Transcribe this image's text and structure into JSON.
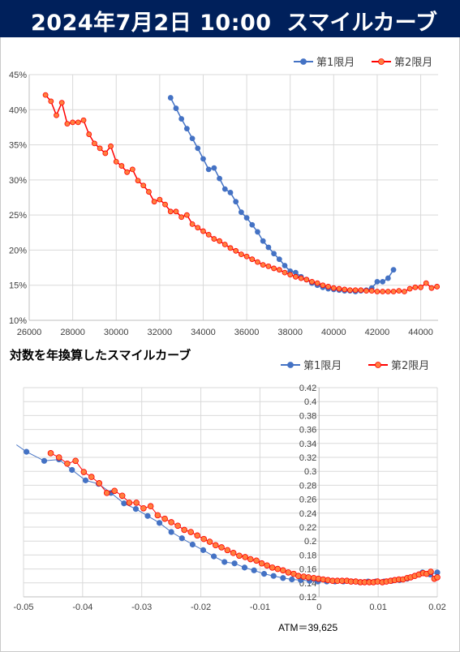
{
  "header": {
    "title": "2024年7月2日 10:00",
    "subtitle": "スマイルカーブ",
    "bg_color": "#00205b"
  },
  "colors": {
    "series1": "#4472c4",
    "series2": "#ff0000",
    "series2_fill": "#ff7f3f"
  },
  "chart_data": [
    {
      "type": "line",
      "title": "",
      "xlim": [
        26000,
        44800
      ],
      "ylim": [
        0.1,
        0.45
      ],
      "x_ticks": [
        26000,
        28000,
        30000,
        32000,
        34000,
        36000,
        38000,
        40000,
        42000,
        44000
      ],
      "y_ticks": [
        0.1,
        0.15,
        0.2,
        0.25,
        0.3,
        0.35,
        0.4,
        0.45
      ],
      "x_tick_labels": [
        "26000",
        "28000",
        "30000",
        "32000",
        "34000",
        "36000",
        "38000",
        "40000",
        "42000",
        "44000"
      ],
      "y_tick_labels": [
        "10%",
        "15%",
        "20%",
        "25%",
        "30%",
        "35%",
        "40%",
        "45%"
      ],
      "grid": true,
      "legend": "top-right",
      "series": [
        {
          "name": "第1限月",
          "x": [
            32500,
            32750,
            33000,
            33250,
            33500,
            33750,
            34000,
            34250,
            34500,
            34750,
            35000,
            35250,
            35500,
            35750,
            36000,
            36250,
            36500,
            36750,
            37000,
            37250,
            37500,
            37750,
            38000,
            38250,
            38500,
            38750,
            39000,
            39250,
            39500,
            39750,
            40000,
            40250,
            40500,
            40750,
            41000,
            41250,
            41500,
            41750,
            42000,
            42250,
            42500,
            42750
          ],
          "y": [
            0.417,
            0.402,
            0.387,
            0.373,
            0.359,
            0.345,
            0.33,
            0.315,
            0.317,
            0.302,
            0.287,
            0.282,
            0.269,
            0.254,
            0.246,
            0.236,
            0.226,
            0.213,
            0.204,
            0.195,
            0.187,
            0.178,
            0.17,
            0.168,
            0.162,
            0.158,
            0.153,
            0.15,
            0.147,
            0.145,
            0.144,
            0.143,
            0.142,
            0.142,
            0.141,
            0.142,
            0.143,
            0.146,
            0.155,
            0.155,
            0.16,
            0.172
          ]
        },
        {
          "name": "第2限月",
          "x": [
            26750,
            27000,
            27250,
            27500,
            27750,
            28000,
            28250,
            28500,
            28750,
            29000,
            29250,
            29500,
            29750,
            30000,
            30250,
            30500,
            30750,
            31000,
            31250,
            31500,
            31750,
            32000,
            32250,
            32500,
            32750,
            33000,
            33250,
            33500,
            33750,
            34000,
            34250,
            34500,
            34750,
            35000,
            35250,
            35500,
            35750,
            36000,
            36250,
            36500,
            36750,
            37000,
            37250,
            37500,
            37750,
            38000,
            38250,
            38500,
            38750,
            39000,
            39250,
            39500,
            39750,
            40000,
            40250,
            40500,
            40750,
            41000,
            41250,
            41500,
            41750,
            42000,
            42250,
            42500,
            42750,
            43000,
            43250,
            43500,
            43750,
            44000,
            44250,
            44500,
            44750
          ],
          "y": [
            0.421,
            0.412,
            0.392,
            0.41,
            0.38,
            0.382,
            0.382,
            0.385,
            0.365,
            0.352,
            0.345,
            0.338,
            0.348,
            0.326,
            0.32,
            0.311,
            0.315,
            0.299,
            0.292,
            0.283,
            0.269,
            0.272,
            0.265,
            0.255,
            0.255,
            0.247,
            0.25,
            0.237,
            0.232,
            0.227,
            0.222,
            0.216,
            0.213,
            0.208,
            0.203,
            0.199,
            0.194,
            0.191,
            0.187,
            0.183,
            0.179,
            0.177,
            0.174,
            0.172,
            0.168,
            0.165,
            0.162,
            0.16,
            0.158,
            0.155,
            0.153,
            0.15,
            0.148,
            0.146,
            0.145,
            0.144,
            0.143,
            0.143,
            0.143,
            0.142,
            0.142,
            0.141,
            0.141,
            0.141,
            0.141,
            0.142,
            0.141,
            0.145,
            0.147,
            0.147,
            0.153,
            0.146,
            0.148
          ]
        }
      ]
    },
    {
      "type": "line",
      "title": "対数を年換算したスマイルカーブ",
      "xlim": [
        -0.05,
        0.02
      ],
      "ylim": [
        0.12,
        0.42
      ],
      "x_ticks": [
        -0.05,
        -0.04,
        -0.03,
        -0.02,
        -0.01,
        0,
        0.01,
        0.02
      ],
      "y_ticks": [
        0.12,
        0.14,
        0.16,
        0.18,
        0.2,
        0.22,
        0.24,
        0.26,
        0.28,
        0.3,
        0.32,
        0.34,
        0.36,
        0.38,
        0.4,
        0.42
      ],
      "x_tick_labels": [
        "-0.05",
        "-0.04",
        "-0.03",
        "-0.02",
        "-0.01",
        "0",
        "0.01",
        "0.02"
      ],
      "y_tick_labels": [
        "0.12",
        "0.14",
        "0.16",
        "0.18",
        "0.2",
        "0.22",
        "0.24",
        "0.26",
        "0.28",
        "0.3",
        "0.32",
        "0.34",
        "0.36",
        "0.38",
        "0.4",
        "0.42"
      ],
      "grid": true,
      "legend": "top-right",
      "annotation": "ATM＝39,625",
      "series": [
        {
          "name": "第1限月",
          "x": [
            -0.0512,
            -0.0495,
            -0.0465,
            -0.044,
            -0.0418,
            -0.0395,
            -0.0373,
            -0.0352,
            -0.033,
            -0.031,
            -0.029,
            -0.027,
            -0.025,
            -0.0232,
            -0.0214,
            -0.0196,
            -0.0178,
            -0.016,
            -0.0143,
            -0.0126,
            -0.011,
            -0.0093,
            -0.0077,
            -0.0061,
            -0.0046,
            -0.0031,
            -0.0016,
            -0.0002,
            0.0013,
            0.0027,
            0.0041,
            0.0055,
            0.0069,
            0.0083,
            0.0096,
            0.011,
            0.0123,
            0.0136,
            0.0149,
            0.0162,
            0.0175,
            0.0188,
            0.02
          ],
          "y": [
            0.338,
            0.328,
            0.315,
            0.317,
            0.302,
            0.287,
            0.282,
            0.269,
            0.254,
            0.246,
            0.236,
            0.226,
            0.213,
            0.204,
            0.195,
            0.187,
            0.178,
            0.17,
            0.168,
            0.162,
            0.158,
            0.153,
            0.15,
            0.147,
            0.145,
            0.144,
            0.143,
            0.142,
            0.142,
            0.142,
            0.142,
            0.142,
            0.141,
            0.142,
            0.142,
            0.142,
            0.143,
            0.144,
            0.146,
            0.15,
            0.155,
            0.152,
            0.155
          ]
        },
        {
          "name": "第2限月",
          "x": [
            -0.0454,
            -0.044,
            -0.0426,
            -0.0412,
            -0.0398,
            -0.0385,
            -0.0372,
            -0.0359,
            -0.0346,
            -0.0333,
            -0.0321,
            -0.0309,
            -0.0297,
            -0.0285,
            -0.0273,
            -0.0261,
            -0.025,
            -0.0239,
            -0.0228,
            -0.0217,
            -0.0206,
            -0.0195,
            -0.0185,
            -0.0175,
            -0.0165,
            -0.0155,
            -0.0145,
            -0.0135,
            -0.0125,
            -0.0116,
            -0.0106,
            -0.0097,
            -0.0088,
            -0.0079,
            -0.007,
            -0.0061,
            -0.0052,
            -0.0043,
            -0.0035,
            -0.0026,
            -0.0018,
            -0.0009,
            -0.0001,
            0.0007,
            0.0015,
            0.0023,
            0.0031,
            0.0039,
            0.0047,
            0.0054,
            0.0062,
            0.007,
            0.0077,
            0.0085,
            0.0092,
            0.0099,
            0.0107,
            0.0114,
            0.0121,
            0.0128,
            0.0135,
            0.0142,
            0.0149,
            0.0155,
            0.0162,
            0.0169,
            0.0176,
            0.0182,
            0.0189,
            0.0195,
            0.02
          ],
          "y": [
            0.326,
            0.32,
            0.311,
            0.315,
            0.299,
            0.292,
            0.283,
            0.269,
            0.272,
            0.265,
            0.255,
            0.255,
            0.247,
            0.25,
            0.237,
            0.232,
            0.227,
            0.222,
            0.216,
            0.213,
            0.208,
            0.203,
            0.199,
            0.194,
            0.191,
            0.187,
            0.183,
            0.179,
            0.177,
            0.174,
            0.172,
            0.168,
            0.165,
            0.162,
            0.16,
            0.158,
            0.155,
            0.153,
            0.15,
            0.149,
            0.148,
            0.147,
            0.146,
            0.145,
            0.144,
            0.143,
            0.143,
            0.143,
            0.143,
            0.142,
            0.142,
            0.141,
            0.141,
            0.141,
            0.141,
            0.142,
            0.141,
            0.142,
            0.143,
            0.144,
            0.145,
            0.145,
            0.147,
            0.148,
            0.15,
            0.152,
            0.154,
            0.153,
            0.156,
            0.146,
            0.148
          ]
        }
      ]
    }
  ]
}
